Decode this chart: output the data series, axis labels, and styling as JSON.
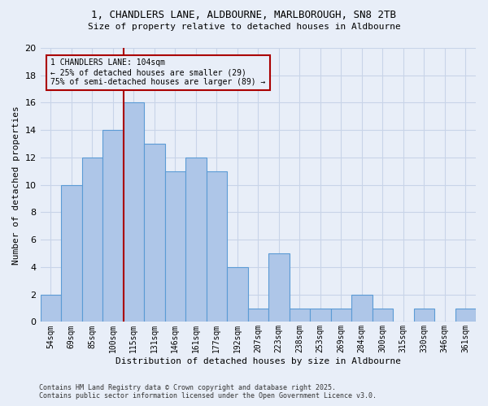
{
  "title_line1": "1, CHANDLERS LANE, ALDBOURNE, MARLBOROUGH, SN8 2TB",
  "title_line2": "Size of property relative to detached houses in Aldbourne",
  "xlabel": "Distribution of detached houses by size in Aldbourne",
  "ylabel": "Number of detached properties",
  "footnote1": "Contains HM Land Registry data © Crown copyright and database right 2025.",
  "footnote2": "Contains public sector information licensed under the Open Government Licence v3.0.",
  "categories": [
    "54sqm",
    "69sqm",
    "85sqm",
    "100sqm",
    "115sqm",
    "131sqm",
    "146sqm",
    "161sqm",
    "177sqm",
    "192sqm",
    "207sqm",
    "223sqm",
    "238sqm",
    "253sqm",
    "269sqm",
    "284sqm",
    "300sqm",
    "315sqm",
    "330sqm",
    "346sqm",
    "361sqm"
  ],
  "values": [
    2,
    10,
    12,
    14,
    16,
    13,
    11,
    12,
    11,
    4,
    1,
    5,
    1,
    1,
    1,
    2,
    1,
    0,
    1,
    0,
    1
  ],
  "bar_color": "#aec6e8",
  "bar_edge_color": "#5b9bd5",
  "grid_color": "#c8d4e8",
  "bg_color": "#e8eef8",
  "annotation_box_text": "1 CHANDLERS LANE: 104sqm\n← 25% of detached houses are smaller (29)\n75% of semi-detached houses are larger (89) →",
  "annotation_box_color": "#aa0000",
  "vline_x_index": 3,
  "vline_color": "#aa0000",
  "ylim": [
    0,
    20
  ],
  "yticks": [
    0,
    2,
    4,
    6,
    8,
    10,
    12,
    14,
    16,
    18,
    20
  ]
}
